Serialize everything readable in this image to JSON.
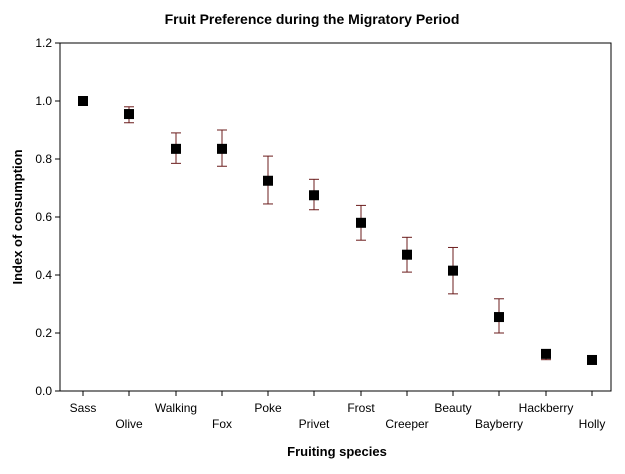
{
  "chart_data": {
    "type": "scatter",
    "title": "Fruit Preference during the Migratory Period",
    "xlabel": "Fruiting species",
    "ylabel": "Index of consumption",
    "ylim": [
      0,
      1.2
    ],
    "yticks": [
      "0.0",
      "0.2",
      "0.4",
      "0.6",
      "0.8",
      "1.0",
      "1.2"
    ],
    "grid": false,
    "legend": "none",
    "categories": [
      "Sass",
      "Olive",
      "Walking",
      "Fox",
      "Poke",
      "Privet",
      "Frost",
      "Creeper",
      "Beauty",
      "Bayberry",
      "Hackberry",
      "Holly"
    ],
    "series": [
      {
        "values": [
          1.0,
          0.955,
          0.835,
          0.835,
          0.725,
          0.675,
          0.58,
          0.47,
          0.415,
          0.255,
          0.128,
          0.107
        ],
        "error_low": [
          1.0,
          0.925,
          0.785,
          0.775,
          0.645,
          0.625,
          0.52,
          0.41,
          0.335,
          0.2,
          0.108,
          0.1
        ],
        "error_high": [
          1.0,
          0.98,
          0.89,
          0.9,
          0.81,
          0.73,
          0.64,
          0.53,
          0.495,
          0.318,
          0.14,
          0.114
        ]
      }
    ],
    "colors": {
      "marker": "#000000",
      "errorbar": "#6b1c1c",
      "axis": "#000000"
    }
  }
}
